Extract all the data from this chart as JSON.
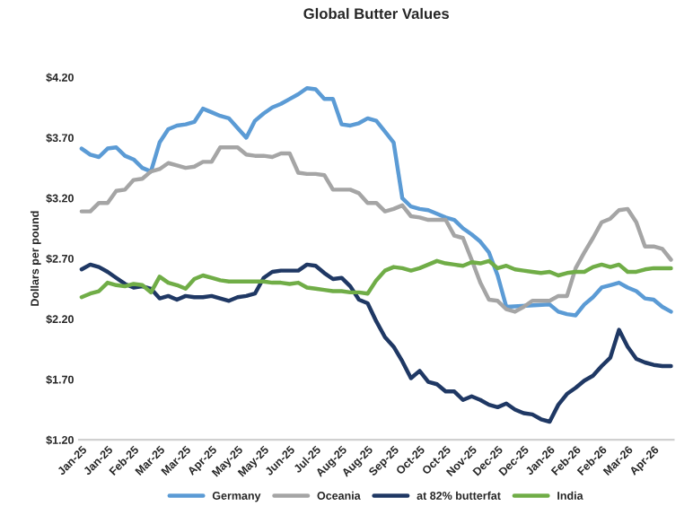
{
  "chart_data": {
    "type": "line",
    "title": "Global Butter Values",
    "ylabel": "Dollars per pound",
    "categories": [
      "Jan-25",
      null,
      null,
      "Jan-25",
      null,
      null,
      "Feb-25",
      null,
      null,
      "Mar-25",
      null,
      null,
      "Mar-25",
      null,
      null,
      "Apr-25",
      null,
      null,
      "May-25",
      null,
      null,
      "May-25",
      null,
      null,
      "Jun-25",
      null,
      null,
      "Jul-25",
      null,
      null,
      "Aug-25",
      null,
      null,
      "Aug-25",
      null,
      null,
      "Sep-25",
      null,
      null,
      "Oct-25",
      null,
      null,
      "Oct-25",
      null,
      null,
      "Nov-25",
      null,
      null,
      "Dec-25",
      null,
      null,
      "Dec-25",
      null,
      null,
      "Jan-26",
      null,
      null,
      "Feb-26",
      null,
      null,
      "Feb-26",
      null,
      null,
      "Mar-26",
      null,
      null,
      "Apr-26",
      null,
      null
    ],
    "series": [
      {
        "name": "Germany",
        "color": "#5b9bd5",
        "values": [
          3.61,
          3.56,
          3.54,
          3.61,
          3.62,
          3.55,
          3.52,
          3.45,
          3.42,
          3.66,
          3.77,
          3.8,
          3.81,
          3.83,
          3.94,
          3.91,
          3.88,
          3.86,
          3.78,
          3.7,
          3.84,
          3.9,
          3.95,
          3.98,
          4.02,
          4.06,
          4.11,
          4.1,
          4.02,
          4.02,
          3.81,
          3.8,
          3.82,
          3.86,
          3.84,
          3.75,
          3.66,
          3.2,
          3.13,
          3.11,
          3.1,
          3.07,
          3.04,
          3.02,
          2.95,
          2.9,
          2.84,
          2.75,
          2.56,
          2.3,
          null,
          null,
          null,
          null,
          2.32,
          2.26,
          2.24,
          2.23,
          2.32,
          2.38,
          2.46,
          2.48,
          2.5,
          2.46,
          2.43,
          2.37,
          2.36,
          2.3,
          2.26
        ]
      },
      {
        "name": "Oceania",
        "color": "#a5a5a5",
        "values": [
          3.09,
          3.09,
          3.16,
          3.16,
          3.26,
          3.27,
          3.35,
          3.36,
          3.42,
          3.44,
          3.49,
          3.47,
          3.45,
          3.46,
          3.5,
          3.5,
          3.62,
          3.62,
          3.62,
          3.56,
          3.55,
          3.55,
          3.54,
          3.57,
          3.57,
          3.41,
          3.4,
          3.4,
          3.39,
          3.27,
          3.27,
          3.27,
          3.24,
          3.16,
          3.16,
          3.09,
          3.11,
          3.14,
          3.05,
          3.04,
          3.02,
          3.02,
          3.02,
          2.89,
          2.87,
          2.69,
          2.5,
          2.36,
          2.35,
          2.28,
          2.26,
          2.3,
          2.35,
          2.35,
          2.35,
          2.39,
          2.39,
          2.62,
          2.75,
          2.87,
          3.0,
          3.03,
          3.1,
          3.11,
          3.0,
          2.8,
          2.8,
          2.78,
          2.69
        ]
      },
      {
        "name": "at 82% butterfat",
        "color": "#1f3864",
        "values": [
          2.61,
          2.65,
          2.63,
          2.59,
          2.54,
          2.49,
          2.46,
          2.47,
          2.45,
          2.37,
          2.39,
          2.36,
          2.39,
          2.38,
          2.38,
          2.39,
          2.37,
          2.35,
          2.38,
          2.39,
          2.41,
          2.54,
          2.59,
          2.6,
          2.6,
          2.6,
          2.65,
          2.64,
          2.58,
          2.53,
          2.54,
          2.47,
          2.36,
          2.33,
          2.18,
          2.05,
          1.97,
          1.85,
          1.71,
          1.77,
          1.68,
          1.66,
          1.6,
          1.6,
          1.53,
          1.56,
          1.53,
          1.49,
          1.47,
          1.5,
          1.45,
          1.42,
          1.41,
          1.37,
          1.35,
          1.49,
          1.58,
          1.63,
          1.69,
          1.73,
          1.81,
          1.88,
          2.11,
          1.97,
          1.87,
          1.84,
          1.82,
          1.81,
          1.81
        ]
      },
      {
        "name": "India",
        "color": "#70ad47",
        "values": [
          2.38,
          2.41,
          2.43,
          2.5,
          2.48,
          2.47,
          2.49,
          2.48,
          2.42,
          2.55,
          2.5,
          2.48,
          2.45,
          2.53,
          2.56,
          2.54,
          2.52,
          2.51,
          2.51,
          2.51,
          2.51,
          2.51,
          2.5,
          2.5,
          2.49,
          2.5,
          2.46,
          2.45,
          2.44,
          2.43,
          2.43,
          2.42,
          2.42,
          2.41,
          2.52,
          2.6,
          2.63,
          2.62,
          2.6,
          2.62,
          2.65,
          2.68,
          2.66,
          2.65,
          2.64,
          2.67,
          2.66,
          2.68,
          2.62,
          2.64,
          2.61,
          2.6,
          2.59,
          2.58,
          2.59,
          2.56,
          2.58,
          2.59,
          2.59,
          2.63,
          2.65,
          2.63,
          2.65,
          2.59,
          2.59,
          2.61,
          2.62,
          2.62,
          2.62
        ]
      }
    ],
    "ylim": [
      1.2,
      4.2
    ],
    "yticks": [
      {
        "value": 1.2,
        "label": "$1.20"
      },
      {
        "value": 1.7,
        "label": "$1.70"
      },
      {
        "value": 2.2,
        "label": "$2.20"
      },
      {
        "value": 2.7,
        "label": "$2.70"
      },
      {
        "value": 3.2,
        "label": "$3.20"
      },
      {
        "value": 3.7,
        "label": "$3.70"
      },
      {
        "value": 4.2,
        "label": "$4.20"
      }
    ],
    "grid": false,
    "legend": "bottom",
    "marker": "none",
    "line_style": "solid"
  }
}
